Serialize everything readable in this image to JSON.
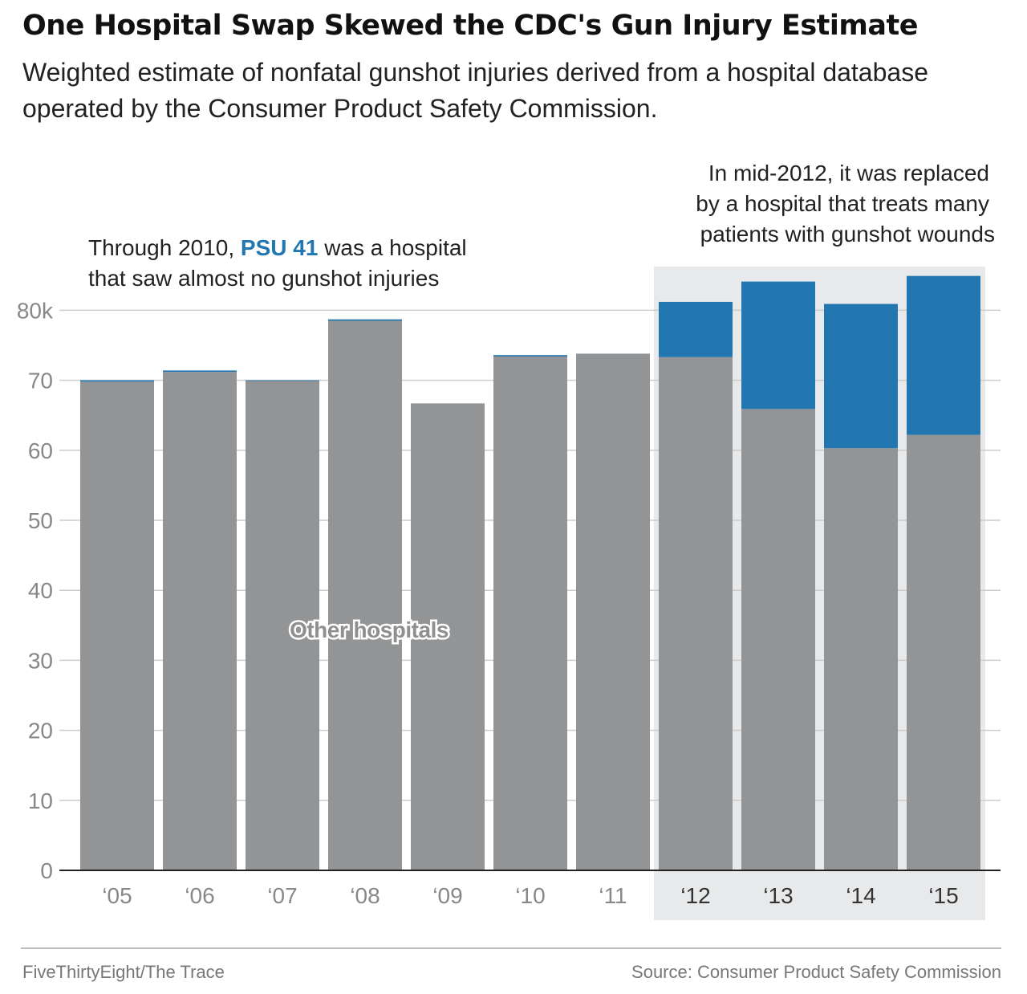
{
  "title": "One Hospital Swap Skewed the CDC's Gun Injury Estimate",
  "subtitle": "Weighted estimate of nonfatal gunshot injuries derived from a hospital database operated by the Consumer Product Safety Commission.",
  "annotations": {
    "left_prefix": "Through 2010, ",
    "left_highlight": "PSU 41",
    "left_suffix": " was a hospital",
    "left_line2": "that saw almost no gunshot injuries",
    "right_line1": "In mid-2012, it was replaced",
    "right_line2": "by a hospital that treats many",
    "right_line3": "patients with gunshot wounds",
    "inside_label": "Other hospitals"
  },
  "footer": {
    "credit": "FiveThirtyEight/The Trace",
    "source": "Source: Consumer Product Safety Commission"
  },
  "chart_data": {
    "type": "bar",
    "stacked": true,
    "categories": [
      "‘05",
      "‘06",
      "‘07",
      "‘08",
      "‘09",
      "‘10",
      "‘11",
      "‘12",
      "‘13",
      "‘14",
      "‘15"
    ],
    "series": [
      {
        "name": "Other hospitals",
        "color": "#939496",
        "values": [
          69.8,
          71.2,
          69.9,
          78.5,
          66.7,
          73.4,
          73.8,
          73.3,
          65.9,
          60.3,
          62.2
        ]
      },
      {
        "name": "PSU 41",
        "color": "#2377b1",
        "values": [
          0.2,
          0.2,
          0.1,
          0.2,
          0.0,
          0.2,
          0.0,
          7.9,
          18.2,
          20.6,
          22.7
        ]
      }
    ],
    "yticks": [
      0,
      10,
      20,
      30,
      40,
      50,
      60,
      70,
      80
    ],
    "ytick_labels": [
      "0",
      "10",
      "20",
      "30",
      "40",
      "50",
      "60",
      "70",
      "80k"
    ],
    "ylim": [
      0,
      86
    ],
    "grid": true,
    "highlight_categories": [
      "‘12",
      "‘13",
      "‘14",
      "‘15"
    ],
    "highlight_color": "#e8e9ea"
  }
}
